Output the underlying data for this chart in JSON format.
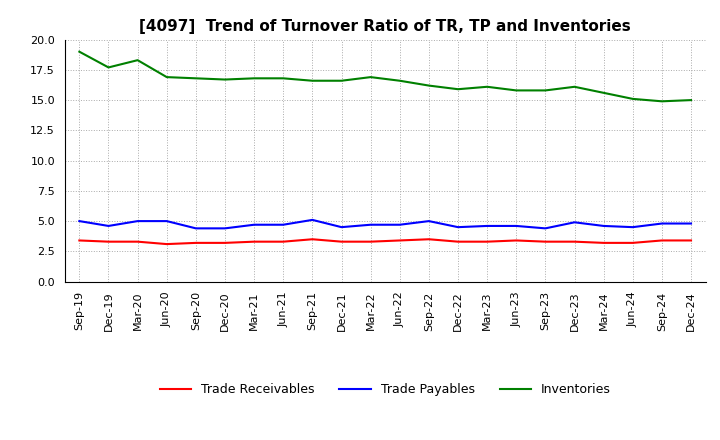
{
  "title": "[4097]  Trend of Turnover Ratio of TR, TP and Inventories",
  "xlabels": [
    "Sep-19",
    "Dec-19",
    "Mar-20",
    "Jun-20",
    "Sep-20",
    "Dec-20",
    "Mar-21",
    "Jun-21",
    "Sep-21",
    "Dec-21",
    "Mar-22",
    "Jun-22",
    "Sep-22",
    "Dec-22",
    "Mar-23",
    "Jun-23",
    "Sep-23",
    "Dec-23",
    "Mar-24",
    "Jun-24",
    "Sep-24",
    "Dec-24"
  ],
  "trade_receivables": [
    3.4,
    3.3,
    3.3,
    3.1,
    3.2,
    3.2,
    3.3,
    3.3,
    3.5,
    3.3,
    3.3,
    3.4,
    3.5,
    3.3,
    3.3,
    3.4,
    3.3,
    3.3,
    3.2,
    3.2,
    3.4,
    3.4
  ],
  "trade_payables": [
    5.0,
    4.6,
    5.0,
    5.0,
    4.4,
    4.4,
    4.7,
    4.7,
    5.1,
    4.5,
    4.7,
    4.7,
    5.0,
    4.5,
    4.6,
    4.6,
    4.4,
    4.9,
    4.6,
    4.5,
    4.8,
    4.8
  ],
  "inventories": [
    19.0,
    17.7,
    18.3,
    16.9,
    16.8,
    16.7,
    16.8,
    16.8,
    16.6,
    16.6,
    16.9,
    16.6,
    16.2,
    15.9,
    16.1,
    15.8,
    15.8,
    16.1,
    15.6,
    15.1,
    14.9,
    15.0
  ],
  "tr_color": "#ff0000",
  "tp_color": "#0000ff",
  "inv_color": "#008000",
  "ylim": [
    0.0,
    20.0
  ],
  "yticks": [
    0.0,
    2.5,
    5.0,
    7.5,
    10.0,
    12.5,
    15.0,
    17.5,
    20.0
  ],
  "bg_color": "#ffffff",
  "grid_color": "#aaaaaa",
  "title_fontsize": 11,
  "tick_fontsize": 8,
  "legend_fontsize": 9
}
